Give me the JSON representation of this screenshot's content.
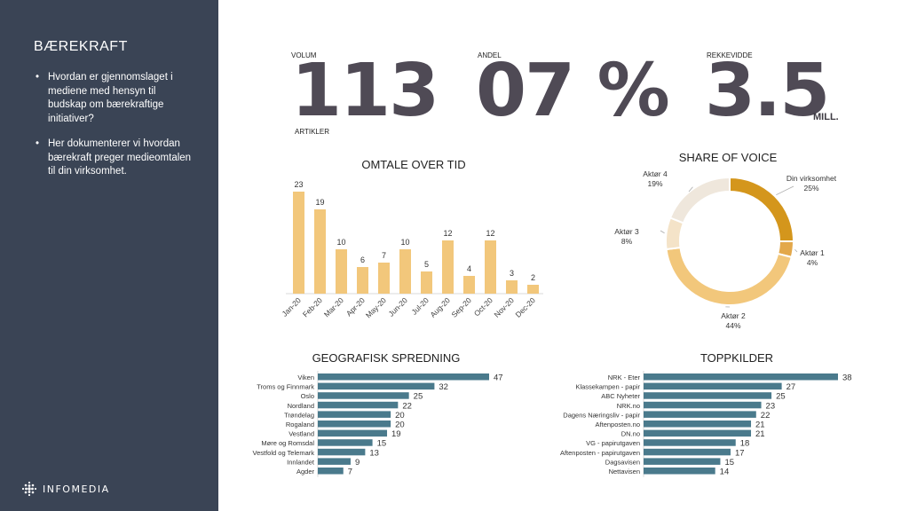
{
  "sidebar": {
    "title": "BÆREKRAFT",
    "bullets": [
      "Hvordan er gjennomslaget i mediene med hensyn til budskap om bærekraftige initiativer?",
      "Her dokumenterer  vi hvordan bærekraft preger medieomtalen til din virksomhet."
    ],
    "logo_text": "INFOMEDIA"
  },
  "kpis": {
    "volum": {
      "label": "VOLUM",
      "value": "113",
      "sublabel": "ARTIKLER"
    },
    "andel": {
      "label": "ANDEL",
      "value": "07 %"
    },
    "rekkevidde": {
      "label": "REKKEVIDDE",
      "value": "3.5",
      "unit": "MILL."
    }
  },
  "colors": {
    "sidebar": "#3a4455",
    "kpi": "#4f4a55",
    "bar": "#f2c77b",
    "hbar": "#4a7a8c",
    "donut": [
      "#d4961c",
      "#e3a84a",
      "#f2c77b",
      "#f4e3c8",
      "#efe7dc"
    ]
  },
  "chart_data": [
    {
      "type": "bar",
      "title": "OMTALE OVER TID",
      "categories": [
        "Jan-20",
        "Feb-20",
        "Mar-20",
        "Apr-20",
        "May-20",
        "Jun-20",
        "Jul-20",
        "Aug-20",
        "Sep-20",
        "Oct-20",
        "Nov-20",
        "Dec-20"
      ],
      "values": [
        23,
        19,
        10,
        6,
        7,
        10,
        5,
        12,
        4,
        12,
        3,
        2
      ],
      "ylim": [
        0,
        23
      ]
    },
    {
      "type": "pie",
      "title": "SHARE OF VOICE",
      "labels": [
        "Din virksomhet",
        "Aktør 1",
        "Aktør 2",
        "Aktør 3",
        "Aktør 4"
      ],
      "values": [
        25,
        4,
        44,
        8,
        19
      ],
      "value_labels": [
        "25%",
        "4%",
        "44%",
        "8%",
        "19%"
      ]
    },
    {
      "type": "bar",
      "orientation": "horizontal",
      "title": "GEOGRAFISK SPREDNING",
      "categories": [
        "Viken",
        "Troms og Finnmark",
        "Oslo",
        "Nordland",
        "Trøndelag",
        "Rogaland",
        "Vestland",
        "Møre og Romsdal",
        "Vestfold og Telemark",
        "Innlandet",
        "Agder"
      ],
      "values": [
        47,
        32,
        25,
        22,
        20,
        20,
        19,
        15,
        13,
        9,
        7
      ],
      "xlim": [
        0,
        47
      ]
    },
    {
      "type": "bar",
      "orientation": "horizontal",
      "title": "TOPPKILDER",
      "categories": [
        "NRK - Eter",
        "Klassekampen - papir",
        "ABC Nyheter",
        "NRK.no",
        "Dagens Næringsliv - papir",
        "Aftenposten.no",
        "DN.no",
        "VG - papirutgaven",
        "Aftenposten - papirutgaven",
        "Dagsavisen",
        "Nettavisen"
      ],
      "values": [
        38,
        27,
        25,
        23,
        22,
        21,
        21,
        18,
        17,
        15,
        14
      ],
      "xlim": [
        0,
        38
      ]
    }
  ]
}
